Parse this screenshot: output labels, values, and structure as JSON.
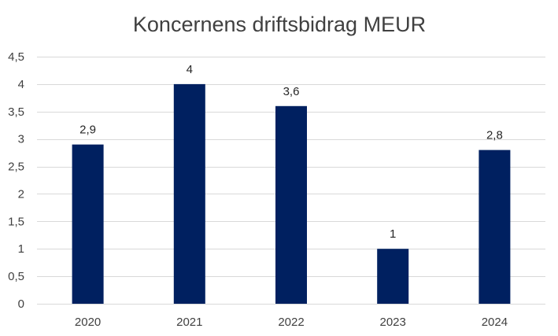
{
  "chart_data": {
    "type": "bar",
    "title": "Koncernens driftsbidrag MEUR",
    "categories": [
      "2020",
      "2021",
      "2022",
      "2023",
      "2024"
    ],
    "values": [
      2.9,
      4,
      3.6,
      1,
      2.8
    ],
    "value_labels": [
      "2,9",
      "4",
      "3,6",
      "1",
      "2,8"
    ],
    "y_ticks": [
      0,
      0.5,
      1,
      1.5,
      2,
      2.5,
      3,
      3.5,
      4,
      4.5
    ],
    "y_tick_labels": [
      "0",
      "0,5",
      "1",
      "1,5",
      "2",
      "2,5",
      "3",
      "3,5",
      "4",
      "4,5"
    ],
    "ylim": [
      0,
      4.5
    ],
    "xlabel": "",
    "ylabel": "",
    "grid": true,
    "legend": "none",
    "bar_color": "#002060"
  }
}
